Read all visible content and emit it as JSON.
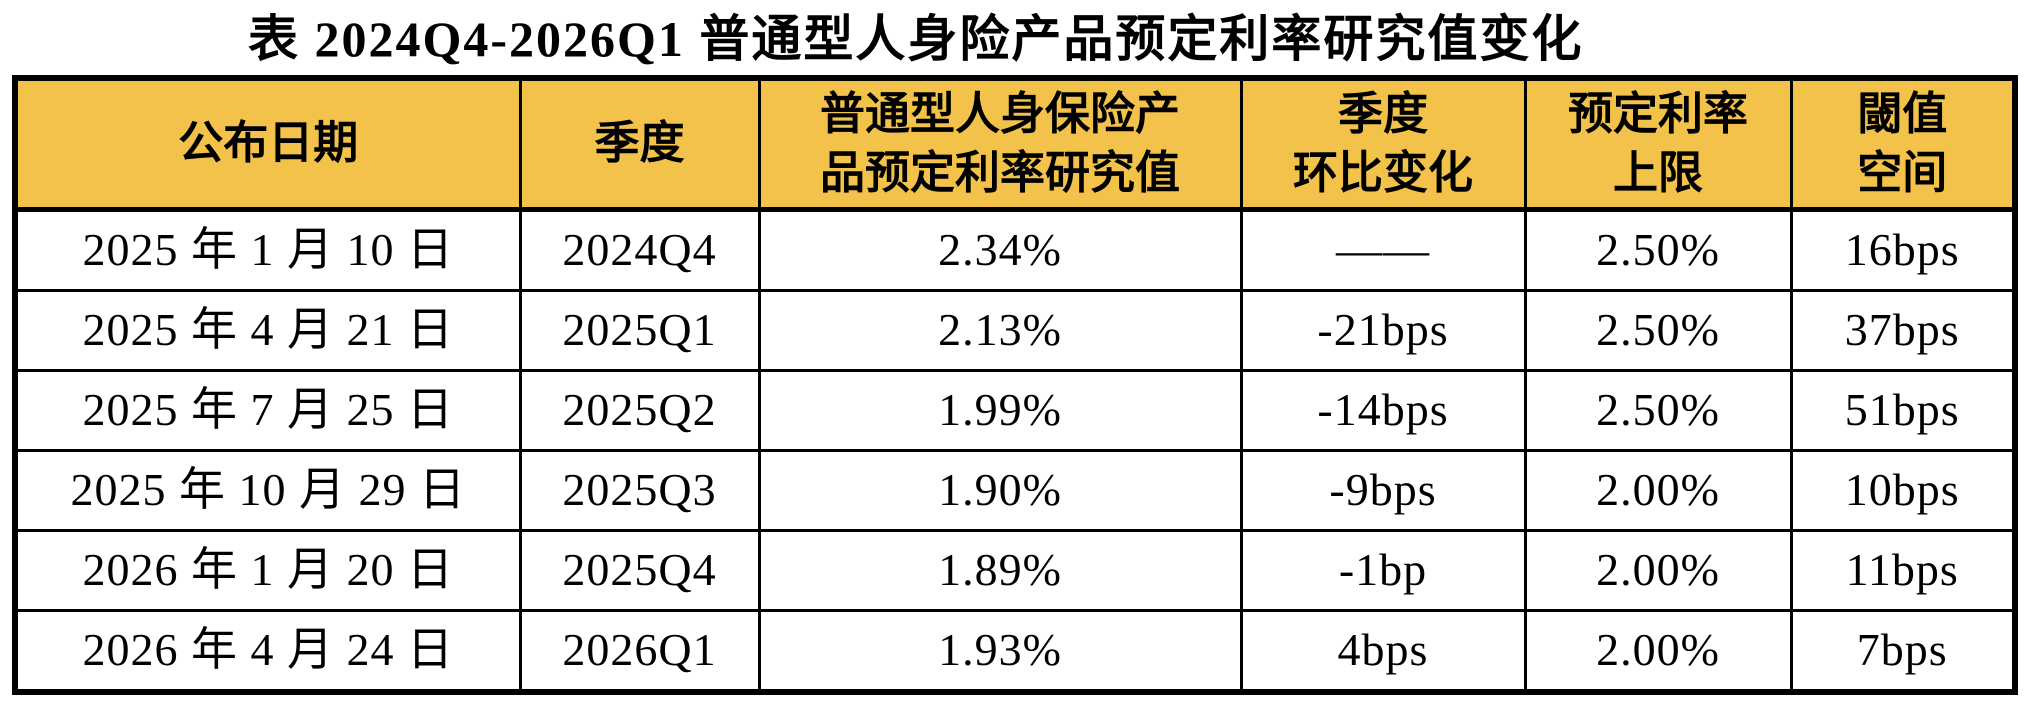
{
  "title": "表 2024Q4-2026Q1 普通型人身险产品预定利率研究值变化",
  "colors": {
    "header_bg": "#F3C24B",
    "border": "#000000",
    "text": "#000000",
    "page_bg": "#FFFFFF"
  },
  "table": {
    "headers": [
      "公布日期",
      "季度",
      "普通型人身保险产\n品预定利率研究值",
      "季度\n环比变化",
      "预定利率\n上限",
      "閾值\n空间"
    ],
    "rows": [
      {
        "cells": [
          "2025 年 1 月 10 日",
          "2024Q4",
          "2.34%",
          "——",
          "2.50%",
          "16bps"
        ]
      },
      {
        "cells": [
          "2025 年 4 月 21 日",
          "2025Q1",
          "2.13%",
          "-21bps",
          "2.50%",
          "37bps"
        ]
      },
      {
        "cells": [
          "2025 年 7 月 25 日",
          "2025Q2",
          "1.99%",
          "-14bps",
          "2.50%",
          "51bps"
        ]
      },
      {
        "cells": [
          "2025 年 10 月 29 日",
          "2025Q3",
          "1.90%",
          "-9bps",
          "2.00%",
          "10bps"
        ]
      },
      {
        "cells": [
          "2026 年 1 月 20 日",
          "2025Q4",
          "1.89%",
          "-1bp",
          "2.00%",
          "11bps"
        ]
      },
      {
        "cells": [
          "2026 年 4 月 24 日",
          "2026Q1",
          "1.93%",
          "4bps",
          "2.00%",
          "7bps"
        ]
      }
    ]
  }
}
